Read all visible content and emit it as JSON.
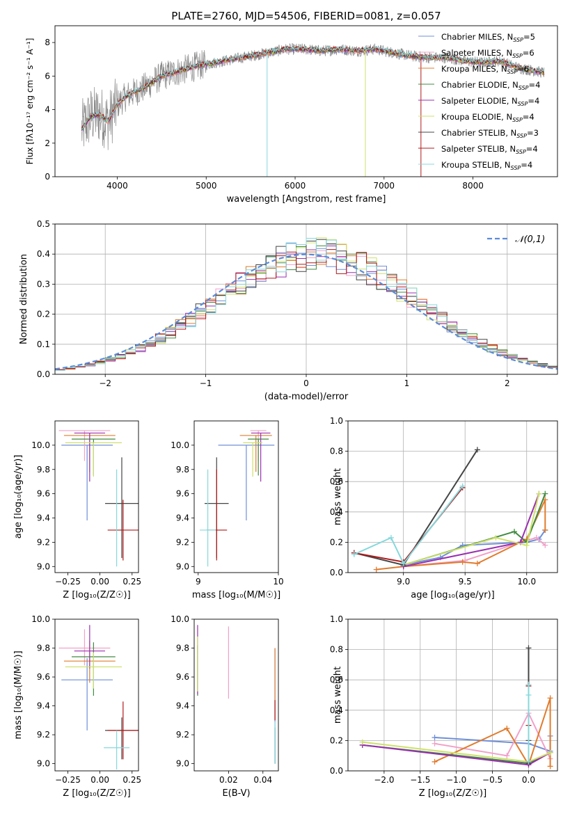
{
  "figure_title": "PLATE=2760, MJD=54506, FIBERID=0081, z=0.057",
  "colors": {
    "Chabrier MILES": "#6f8fd8",
    "Salpeter MILES": "#f2a0c8",
    "Kroupa MILES": "#e07b2c",
    "Chabrier ELODIE": "#3f8a3f",
    "Salpeter ELODIE": "#9a2fb0",
    "Kroupa ELODIE": "#cfe06a",
    "Chabrier STELIB": "#444444",
    "Salpeter STELIB": "#b01818",
    "Kroupa STELIB": "#84d8dc",
    "data": "#888888",
    "normal": "#5b8bd8"
  },
  "chart_data": [
    {
      "id": "spectrum",
      "type": "line",
      "title": "PLATE=2760, MJD=54506, FIBERID=0081, z=0.057",
      "xlabel": "wavelength [Angstrom, rest frame]",
      "ylabel": "Flux [fλ10⁻¹⁷ erg cm⁻² s⁻¹ A⁻¹]",
      "xlim": [
        3300,
        8950
      ],
      "ylim": [
        0,
        9
      ],
      "xticks": [
        4000,
        5000,
        6000,
        7000,
        8000
      ],
      "yticks": [
        0,
        2,
        4,
        6,
        8
      ],
      "legend": "top-right",
      "legend_entries": [
        "Chabrier MILES, NSSP=5",
        "Salpeter MILES, NSSP=6",
        "Kroupa MILES, NSSP=6",
        "Chabrier ELODIE, NSSP=4",
        "Salpeter ELODIE, NSSP=4",
        "Kroupa ELODIE, NSSP=4",
        "Chabrier STELIB, NSSP=3",
        "Salpeter STELIB, NSSP=4",
        "Kroupa STELIB, NSSP=4"
      ],
      "legend_sub": "SSP",
      "continuum": [
        [
          3600,
          2.8
        ],
        [
          3700,
          3.6
        ],
        [
          3800,
          3.7
        ],
        [
          3900,
          3.3
        ],
        [
          4000,
          4.3
        ],
        [
          4100,
          4.8
        ],
        [
          4300,
          5.3
        ],
        [
          4500,
          6.0
        ],
        [
          4700,
          6.3
        ],
        [
          4900,
          6.6
        ],
        [
          5100,
          6.8
        ],
        [
          5300,
          7.0
        ],
        [
          5500,
          7.2
        ],
        [
          5700,
          7.4
        ],
        [
          5900,
          7.6
        ],
        [
          6100,
          7.6
        ],
        [
          6300,
          7.5
        ],
        [
          6500,
          7.6
        ],
        [
          6700,
          7.5
        ],
        [
          6900,
          7.6
        ],
        [
          7100,
          7.4
        ],
        [
          7300,
          7.2
        ],
        [
          7500,
          7.1
        ],
        [
          7700,
          7.1
        ],
        [
          7900,
          6.9
        ],
        [
          8100,
          6.8
        ],
        [
          8300,
          6.9
        ],
        [
          8500,
          6.5
        ],
        [
          8700,
          6.3
        ],
        [
          8800,
          6.2
        ]
      ]
    },
    {
      "id": "residuals",
      "type": "histogram",
      "xlabel": "(data-model)/error",
      "ylabel": "Normed distribution",
      "xlim": [
        -2.5,
        2.5
      ],
      "ylim": [
        0,
        0.5
      ],
      "xticks": [
        -2,
        -1,
        0,
        1,
        2
      ],
      "yticks": [
        0.0,
        0.1,
        0.2,
        0.3,
        0.4,
        0.5
      ],
      "legend": "top-right",
      "legend_label": "𝒩(0,1)",
      "bin_width": 0.1,
      "grid": true
    },
    {
      "id": "age_vs_Z",
      "type": "errorbar",
      "xlabel": "Z [log₁₀(Z/Z☉)]",
      "ylabel": "age  [log₁₀(age/yr)]",
      "xlim": [
        -0.35,
        0.3
      ],
      "ylim": [
        8.95,
        10.2
      ],
      "xticks": [
        -0.25,
        0.0,
        0.25
      ],
      "yticks": [
        9.0,
        9.2,
        9.4,
        9.6,
        9.8,
        10.0
      ],
      "points": [
        {
          "model": "Chabrier MILES",
          "x": -0.1,
          "xerr": 0.2,
          "y": 10.0,
          "yerr": [
            0.62,
            0.0
          ]
        },
        {
          "model": "Salpeter MILES",
          "x": -0.12,
          "xerr": 0.2,
          "y": 10.12,
          "yerr": [
            0.25,
            0.0
          ]
        },
        {
          "model": "Kroupa MILES",
          "x": -0.08,
          "xerr": 0.2,
          "y": 10.08,
          "yerr": [
            0.3,
            0.0
          ]
        },
        {
          "model": "Chabrier ELODIE",
          "x": -0.05,
          "xerr": 0.17,
          "y": 10.05,
          "yerr": [
            0.3,
            0.0
          ]
        },
        {
          "model": "Salpeter ELODIE",
          "x": -0.08,
          "xerr": 0.12,
          "y": 10.1,
          "yerr": [
            0.4,
            0.0
          ]
        },
        {
          "model": "Kroupa ELODIE",
          "x": -0.05,
          "xerr": 0.22,
          "y": 10.02,
          "yerr": [
            0.28,
            0.0
          ]
        },
        {
          "model": "Chabrier STELIB",
          "x": 0.17,
          "xerr": 0.13,
          "y": 9.52,
          "yerr": [
            0.45,
            0.38
          ]
        },
        {
          "model": "Salpeter STELIB",
          "x": 0.18,
          "xerr": 0.12,
          "y": 9.3,
          "yerr": [
            0.25,
            0.25
          ]
        },
        {
          "model": "Kroupa STELIB",
          "x": 0.13,
          "xerr": 0.0,
          "y": 9.4,
          "yerr": [
            0.4,
            0.4
          ]
        }
      ]
    },
    {
      "id": "age_vs_mass",
      "type": "errorbar",
      "xlabel": "mass [log₁₀(M/M☉)]",
      "ylabel": "",
      "xlim": [
        8.95,
        10.0
      ],
      "ylim": [
        8.95,
        10.2
      ],
      "xticks": [
        9,
        10
      ],
      "yticks": [
        9.0,
        9.2,
        9.4,
        9.6,
        9.8,
        10.0
      ],
      "points": [
        {
          "model": "Chabrier MILES",
          "x": 9.6,
          "xerr": 0.35,
          "y": 10.0,
          "yerr": [
            0.62,
            0.0
          ]
        },
        {
          "model": "Salpeter MILES",
          "x": 9.75,
          "xerr": 0.1,
          "y": 10.12,
          "yerr": [
            0.25,
            0.0
          ]
        },
        {
          "model": "Kroupa MILES",
          "x": 9.72,
          "xerr": 0.2,
          "y": 10.08,
          "yerr": [
            0.3,
            0.0
          ]
        },
        {
          "model": "Chabrier ELODIE",
          "x": 9.75,
          "xerr": 0.13,
          "y": 10.05,
          "yerr": [
            0.3,
            0.0
          ]
        },
        {
          "model": "Salpeter ELODIE",
          "x": 9.78,
          "xerr": 0.12,
          "y": 10.1,
          "yerr": [
            0.4,
            0.0
          ]
        },
        {
          "model": "Kroupa ELODIE",
          "x": 9.68,
          "xerr": 0.12,
          "y": 10.02,
          "yerr": [
            0.28,
            0.0
          ]
        },
        {
          "model": "Chabrier STELIB",
          "x": 9.23,
          "xerr": 0.15,
          "y": 9.52,
          "yerr": [
            0.45,
            0.38
          ]
        },
        {
          "model": "Salpeter STELIB",
          "x": 9.23,
          "xerr": 0.13,
          "y": 9.3,
          "yerr": [
            0.25,
            0.5
          ]
        },
        {
          "model": "Kroupa STELIB",
          "x": 9.12,
          "xerr": 0.1,
          "y": 9.3,
          "yerr": [
            0.3,
            0.5
          ]
        }
      ]
    },
    {
      "id": "weight_vs_age",
      "type": "line",
      "xlabel": "age  [log₁₀(age/yr)]",
      "ylabel": "mass weight",
      "xlim": [
        8.55,
        10.25
      ],
      "ylim": [
        0,
        1.0
      ],
      "xticks": [
        9.0,
        9.5,
        10.0
      ],
      "yticks": [
        0.0,
        0.2,
        0.4,
        0.6,
        0.8,
        1.0
      ],
      "grid": true,
      "series": [
        {
          "model": "Chabrier MILES",
          "x": [
            9.0,
            9.3,
            9.48,
            10.0,
            10.1,
            10.15
          ],
          "y": [
            0.05,
            0.1,
            0.18,
            0.2,
            0.22,
            0.28
          ]
        },
        {
          "model": "Salpeter MILES",
          "x": [
            9.0,
            9.5,
            9.95,
            10.08,
            10.15
          ],
          "y": [
            0.04,
            0.08,
            0.2,
            0.23,
            0.18
          ]
        },
        {
          "model": "Kroupa MILES",
          "x": [
            8.78,
            9.0,
            9.48,
            9.6,
            10.0,
            10.15,
            10.15
          ],
          "y": [
            0.02,
            0.04,
            0.07,
            0.06,
            0.22,
            0.48,
            0.28
          ]
        },
        {
          "model": "Chabrier ELODIE",
          "x": [
            9.0,
            9.9,
            10.0,
            10.15
          ],
          "y": [
            0.05,
            0.27,
            0.2,
            0.52
          ]
        },
        {
          "model": "Salpeter ELODIE",
          "x": [
            9.0,
            9.95,
            10.1
          ],
          "y": [
            0.04,
            0.2,
            0.52
          ]
        },
        {
          "model": "Kroupa ELODIE",
          "x": [
            9.0,
            9.75,
            10.0,
            10.1
          ],
          "y": [
            0.05,
            0.23,
            0.18,
            0.52
          ]
        },
        {
          "model": "Chabrier STELIB",
          "x": [
            8.6,
            9.0,
            9.6
          ],
          "y": [
            0.13,
            0.05,
            0.81
          ]
        },
        {
          "model": "Salpeter STELIB",
          "x": [
            8.6,
            9.0,
            9.48
          ],
          "y": [
            0.13,
            0.07,
            0.56
          ]
        },
        {
          "model": "Kroupa STELIB",
          "x": [
            8.6,
            8.9,
            9.0,
            9.48
          ],
          "y": [
            0.12,
            0.23,
            0.06,
            0.57
          ]
        }
      ]
    },
    {
      "id": "mass_vs_Z",
      "type": "errorbar",
      "xlabel": "Z [log₁₀(Z/Z☉)]",
      "ylabel": "mass [log₁₀(M/M☉)]",
      "xlim": [
        -0.35,
        0.3
      ],
      "ylim": [
        8.95,
        10.0
      ],
      "xticks": [
        -0.25,
        0.0,
        0.25
      ],
      "yticks": [
        9.0,
        9.2,
        9.4,
        9.6,
        9.8,
        10.0
      ],
      "points": [
        {
          "model": "Chabrier MILES",
          "x": -0.1,
          "xerr": 0.2,
          "y": 9.58,
          "yerr": [
            0.35,
            0.15
          ]
        },
        {
          "model": "Salpeter MILES",
          "x": -0.12,
          "xerr": 0.2,
          "y": 9.8,
          "yerr": [
            0.12,
            0.13
          ]
        },
        {
          "model": "Kroupa MILES",
          "x": -0.08,
          "xerr": 0.2,
          "y": 9.71,
          "yerr": [
            0.15,
            0.14
          ]
        },
        {
          "model": "Chabrier ELODIE",
          "x": -0.05,
          "xerr": 0.17,
          "y": 9.74,
          "yerr": [
            0.27,
            0.1
          ]
        },
        {
          "model": "Salpeter ELODIE",
          "x": -0.08,
          "xerr": 0.12,
          "y": 9.78,
          "yerr": [
            0.12,
            0.18
          ]
        },
        {
          "model": "Kroupa ELODIE",
          "x": -0.05,
          "xerr": 0.22,
          "y": 9.67,
          "yerr": [
            0.15,
            0.1
          ]
        },
        {
          "model": "Chabrier STELIB",
          "x": 0.17,
          "xerr": 0.13,
          "y": 9.23,
          "yerr": [
            0.2,
            0.09
          ]
        },
        {
          "model": "Salpeter STELIB",
          "x": 0.18,
          "xerr": 0.12,
          "y": 9.23,
          "yerr": [
            0.2,
            0.2
          ]
        },
        {
          "model": "Kroupa STELIB",
          "x": 0.13,
          "xerr": 0.1,
          "y": 9.11,
          "yerr": [
            0.15,
            0.12
          ]
        }
      ]
    },
    {
      "id": "mass_vs_ebv",
      "type": "errorbar",
      "xlabel": "E(B-V)",
      "ylabel": "",
      "xlim": [
        0.0,
        0.049
      ],
      "ylim": [
        8.95,
        10.0
      ],
      "xticks": [
        0.02,
        0.04
      ],
      "yticks": [
        9.0,
        9.2,
        9.4,
        9.6,
        9.8,
        10.0
      ],
      "points": [
        {
          "model": "Chabrier MILES",
          "x": 0.047,
          "xerr": 0.0,
          "y": 9.6,
          "yerr": [
            0.6,
            0.2
          ]
        },
        {
          "model": "Salpeter MILES",
          "x": 0.02,
          "xerr": 0.0,
          "y": 9.75,
          "yerr": [
            0.3,
            0.2
          ]
        },
        {
          "model": "Kroupa MILES",
          "x": 0.047,
          "xerr": 0.0,
          "y": 9.7,
          "yerr": [
            0.4,
            0.1
          ]
        },
        {
          "model": "Chabrier ELODIE",
          "x": 0.002,
          "xerr": 0.0,
          "y": 9.72,
          "yerr": [
            0.25,
            0.1
          ]
        },
        {
          "model": "Salpeter ELODIE",
          "x": 0.002,
          "xerr": 0.0,
          "y": 9.78,
          "yerr": [
            0.3,
            0.18
          ]
        },
        {
          "model": "Kroupa ELODIE",
          "x": 0.002,
          "xerr": 0.0,
          "y": 9.7,
          "yerr": [
            0.2,
            0.18
          ]
        },
        {
          "model": "Chabrier STELIB",
          "x": 0.047,
          "xerr": 0.0,
          "y": 9.15,
          "yerr": [
            0.15,
            0.1
          ]
        },
        {
          "model": "Salpeter STELIB",
          "x": 0.047,
          "xerr": 0.0,
          "y": 9.3,
          "yerr": [
            0.0,
            0.14
          ]
        },
        {
          "model": "Kroupa STELIB",
          "x": 0.047,
          "xerr": 0.0,
          "y": 9.15,
          "yerr": [
            0.15,
            0.14
          ]
        }
      ]
    },
    {
      "id": "weight_vs_Z",
      "type": "line",
      "xlabel": "Z [log₁₀(Z/Z☉)]",
      "ylabel": "mass weight",
      "xlim": [
        -2.5,
        0.4
      ],
      "ylim": [
        0,
        1.0
      ],
      "xticks": [
        -2.0,
        -1.5,
        -1.0,
        -0.5,
        0.0
      ],
      "yticks": [
        0.0,
        0.2,
        0.4,
        0.6,
        0.8,
        1.0
      ],
      "grid": true,
      "series": [
        {
          "model": "Chabrier MILES",
          "x": [
            -1.3,
            0.0,
            0.3,
            0.3
          ],
          "y": [
            0.22,
            0.18,
            0.13,
            0.23
          ]
        },
        {
          "model": "Salpeter MILES",
          "x": [
            -1.3,
            -0.3,
            0.0,
            0.3
          ],
          "y": [
            0.18,
            0.1,
            0.38,
            0.08
          ]
        },
        {
          "model": "Kroupa MILES",
          "x": [
            -1.3,
            -0.3,
            0.0,
            0.3,
            0.3
          ],
          "y": [
            0.06,
            0.28,
            0.04,
            0.48,
            0.03
          ]
        },
        {
          "model": "Chabrier ELODIE",
          "x": [
            -2.3,
            0.0,
            0.3
          ],
          "y": [
            0.17,
            0.05,
            0.12
          ]
        },
        {
          "model": "Salpeter ELODIE",
          "x": [
            -2.3,
            0.0,
            0.3
          ],
          "y": [
            0.17,
            0.04,
            0.12
          ]
        },
        {
          "model": "Kroupa ELODIE",
          "x": [
            -2.3,
            0.0,
            0.3
          ],
          "y": [
            0.19,
            0.06,
            0.12
          ]
        },
        {
          "model": "Chabrier STELIB",
          "x": [
            0.0,
            0.0,
            0.0
          ],
          "y": [
            0.81,
            0.2,
            0.05
          ]
        },
        {
          "model": "Salpeter STELIB",
          "x": [
            0.0,
            0.0,
            0.0
          ],
          "y": [
            0.56,
            0.3,
            0.06
          ]
        },
        {
          "model": "Kroupa STELIB",
          "x": [
            0.0,
            0.0,
            0.0
          ],
          "y": [
            0.57,
            0.5,
            0.06
          ]
        }
      ]
    }
  ]
}
